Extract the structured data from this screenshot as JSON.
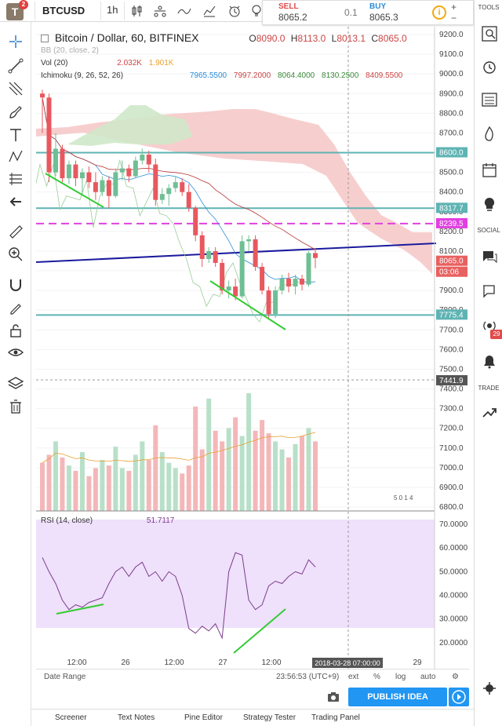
{
  "topbar": {
    "logo": "T",
    "logo_badge": "2",
    "symbol": "BTCUSD",
    "interval": "1h",
    "sell_label": "SELL",
    "sell_value": "8065.2",
    "spread": "0.1",
    "buy_label": "BUY",
    "buy_value": "8065.3",
    "info": "i",
    "plus": "+",
    "minus": "−"
  },
  "legend": {
    "title": "Bitcoin / Dollar, 60, BITFINEX",
    "ohlc": {
      "o_label": "O",
      "o": "8090.0",
      "h_label": "H",
      "h": "8113.0",
      "l_label": "L",
      "l": "8013.1",
      "c_label": "C",
      "c": "8065.0"
    },
    "bb": "BB (20, close, 2)",
    "vol_label": "Vol (20)",
    "vol_v1": "2.032K",
    "vol_v2": "1.901K",
    "ichimoku_label": "Ichimoku (9, 26, 52, 26)",
    "ichimoku_values": [
      "7965.5500",
      "7997.2000",
      "8064.4000",
      "8130.2500",
      "8409.5500"
    ],
    "rsi_label": "RSI (14, close)",
    "rsi_value": "51.7117",
    "vol_overlay": "5 0 1 4"
  },
  "price_axis": {
    "ticks": [
      "9200.0",
      "9100.0",
      "9000.0",
      "8900.0",
      "8800.0",
      "8700.0",
      "8600.0",
      "8500.0",
      "8400.0",
      "8300.0",
      "8200.0",
      "8100.0",
      "8000.0",
      "7900.0",
      "7800.0",
      "7700.0",
      "7600.0",
      "7500.0",
      "7400.0",
      "7300.0",
      "7200.0",
      "7100.0",
      "7000.0",
      "6900.0",
      "6800.0"
    ],
    "tags": [
      {
        "text": "8600.0",
        "bg": "#5fb3b3"
      },
      {
        "text": "8317.7",
        "bg": "#5fb3b3"
      },
      {
        "text": "8239.5",
        "bg": "#e040e0"
      },
      {
        "text": "8065.0",
        "bg": "#e86060"
      },
      {
        "text": "03:06",
        "bg": "#e86060"
      },
      {
        "text": "7775.4",
        "bg": "#5fb3b3"
      },
      {
        "text": "7441.9",
        "bg": "#555555"
      }
    ]
  },
  "rsi_axis": {
    "ticks": [
      "70.0000",
      "60.0000",
      "50.0000",
      "40.0000",
      "30.0000",
      "20.0000"
    ]
  },
  "time_axis": {
    "ticks": [
      "12:00",
      "26",
      "12:00",
      "27",
      "12:00",
      "29"
    ],
    "cursor_label": "2018-03-28 07:00:00"
  },
  "bottombar": {
    "date_range": "Date Range",
    "time": "23:56:53 (UTC+9)",
    "ext": "ext",
    "pct": "%",
    "log": "log",
    "auto": "auto"
  },
  "publish_label": "PUBLISH IDEA",
  "tabs": [
    "Screener",
    "Text Notes",
    "Pine Editor",
    "Strategy Tester",
    "Trading Panel"
  ],
  "righttb": {
    "tools": "TOOLS",
    "social": "SOCIAL",
    "trade": "TRADE",
    "badge": "29"
  },
  "colors": {
    "up": "#6fbf94",
    "down": "#e8585e",
    "cloud": "#f6c6c6",
    "cloud_green": "#cfe8c9",
    "support": "#5fb3b3",
    "magenta": "#e040e0",
    "trend": "#1a1a9e",
    "green_line": "#33cc33",
    "rsi_bg": "#efe0fb",
    "rsi_line": "#7a3e8a"
  },
  "chart_data": {
    "type": "candlestick",
    "symbol": "BTCUSD",
    "interval": "60",
    "exchange": "BITFINEX",
    "ylim": [
      6750,
      9250
    ],
    "last_close": 8065.0,
    "horizontal_levels": [
      8600.0,
      8317.7,
      8239.5,
      7775.4
    ],
    "candles": [
      [
        8900,
        8920,
        8700,
        8880
      ],
      [
        8880,
        8900,
        8450,
        8500
      ],
      [
        8500,
        8700,
        8480,
        8620
      ],
      [
        8620,
        8640,
        8450,
        8470
      ],
      [
        8470,
        8560,
        8440,
        8540
      ],
      [
        8540,
        8560,
        8430,
        8470
      ],
      [
        8470,
        8520,
        8380,
        8500
      ],
      [
        8500,
        8530,
        8420,
        8450
      ],
      [
        8450,
        8500,
        8360,
        8400
      ],
      [
        8400,
        8480,
        8380,
        8460
      ],
      [
        8460,
        8480,
        8320,
        8380
      ],
      [
        8380,
        8520,
        8370,
        8500
      ],
      [
        8500,
        8560,
        8460,
        8520
      ],
      [
        8520,
        8540,
        8450,
        8480
      ],
      [
        8480,
        8580,
        8470,
        8560
      ],
      [
        8560,
        8620,
        8540,
        8590
      ],
      [
        8590,
        8610,
        8500,
        8540
      ],
      [
        8540,
        8570,
        8330,
        8360
      ],
      [
        8360,
        8420,
        8340,
        8390
      ],
      [
        8390,
        8440,
        8330,
        8420
      ],
      [
        8420,
        8480,
        8400,
        8450
      ],
      [
        8450,
        8470,
        8380,
        8400
      ],
      [
        8400,
        8440,
        8300,
        8320
      ],
      [
        8320,
        8330,
        8150,
        8180
      ],
      [
        8180,
        8200,
        8020,
        8060
      ],
      [
        8060,
        8120,
        8040,
        8100
      ],
      [
        8100,
        8120,
        8020,
        8040
      ],
      [
        8040,
        8060,
        7880,
        7900
      ],
      [
        7900,
        7950,
        7860,
        7920
      ],
      [
        7920,
        7960,
        7850,
        7870
      ],
      [
        7870,
        8180,
        7860,
        8150
      ],
      [
        8150,
        8180,
        8100,
        8160
      ],
      [
        8160,
        8180,
        8000,
        8020
      ],
      [
        8020,
        8040,
        7880,
        7900
      ],
      [
        7900,
        7920,
        7760,
        7780
      ],
      [
        7780,
        7920,
        7760,
        7900
      ],
      [
        7900,
        7980,
        7880,
        7960
      ],
      [
        7960,
        7990,
        7890,
        7920
      ],
      [
        7920,
        7980,
        7880,
        7960
      ],
      [
        7960,
        7980,
        7900,
        7930
      ],
      [
        7930,
        8100,
        7920,
        8090
      ],
      [
        8090,
        8113,
        8013,
        8065
      ]
    ],
    "volume": [
      180,
      210,
      260,
      200,
      170,
      150,
      220,
      130,
      160,
      190,
      170,
      240,
      160,
      150,
      210,
      260,
      190,
      320,
      220,
      180,
      160,
      140,
      170,
      390,
      230,
      420,
      300,
      260,
      310,
      350,
      280,
      440,
      300,
      340,
      290,
      260,
      230,
      200,
      250,
      280,
      310,
      260
    ],
    "rsi": {
      "values": [
        56,
        50,
        45,
        38,
        34,
        36,
        35,
        37,
        38,
        39,
        45,
        50,
        52,
        48,
        52,
        54,
        48,
        50,
        46,
        50,
        48,
        40,
        26,
        24,
        27,
        25,
        28,
        22,
        50,
        58,
        57,
        38,
        34,
        36,
        44,
        46,
        45,
        48,
        50,
        49,
        55,
        52
      ],
      "ylim": [
        15,
        72
      ]
    },
    "ichimoku": {
      "values": [
        7965.55,
        7997.2,
        8064.4,
        8130.25,
        8409.55
      ]
    },
    "rsi_current": 51.7117
  }
}
